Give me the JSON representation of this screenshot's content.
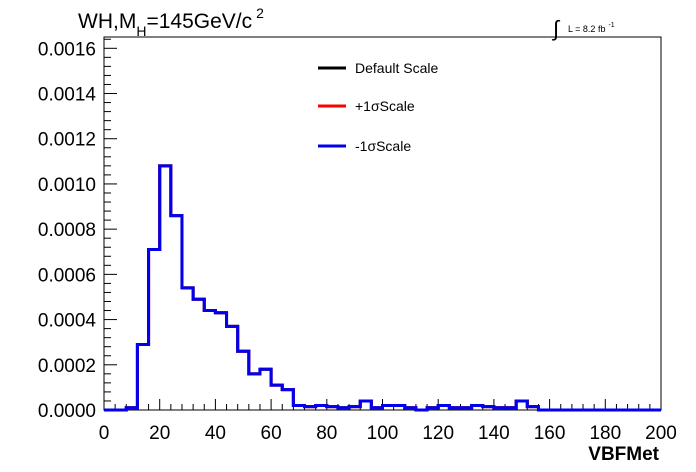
{
  "chart_data": {
    "type": "line",
    "title": {
      "prefix": "WH,M",
      "subscript": "H",
      "middle": "=145GeV/c",
      "superscript": "2"
    },
    "luminosity": {
      "symbol": "∫",
      "text": "L = 8.2 fb",
      "superscript": "-1"
    },
    "xlabel": "VBFMet",
    "ylabel": "",
    "xlim": [
      0,
      200
    ],
    "ylim": [
      0,
      0.00165
    ],
    "x_ticks": [
      "0",
      "20",
      "40",
      "60",
      "80",
      "100",
      "120",
      "140",
      "160",
      "180",
      "200"
    ],
    "y_ticks": [
      "0.0000",
      "0.0002",
      "0.0004",
      "0.0006",
      "0.0008",
      "0.0010",
      "0.0012",
      "0.0014",
      "0.0016"
    ],
    "grid": false,
    "legend_position": "top-right",
    "bin_width": 4,
    "bin_edges_start": 0,
    "series": [
      {
        "name": "Default Scale",
        "color": "#000000",
        "values": [
          0,
          0,
          1e-05,
          0.00029,
          0.00071,
          0.00108,
          0.00086,
          0.00054,
          0.00049,
          0.00044,
          0.00043,
          0.00037,
          0.00026,
          0.00016,
          0.00018,
          0.00011,
          9e-05,
          2e-05,
          1.5e-05,
          2e-05,
          1.5e-05,
          1e-05,
          1.5e-05,
          4e-05,
          1e-05,
          2e-05,
          2e-05,
          1e-05,
          0,
          1e-05,
          2e-05,
          1e-05,
          1e-05,
          2e-05,
          1.5e-05,
          1e-05,
          1e-05,
          4e-05,
          1.5e-05,
          0,
          0,
          0,
          0,
          0,
          0,
          0,
          0,
          0,
          0,
          0
        ]
      },
      {
        "name": "+1σScale",
        "color": "#ff0000",
        "values": [
          0,
          0,
          1e-05,
          0.00029,
          0.00071,
          0.00108,
          0.00086,
          0.00054,
          0.00049,
          0.00044,
          0.00043,
          0.00037,
          0.00026,
          0.00016,
          0.00018,
          0.00011,
          9e-05,
          2e-05,
          1.5e-05,
          2e-05,
          1.5e-05,
          1e-05,
          1.5e-05,
          4e-05,
          1e-05,
          2e-05,
          2e-05,
          1e-05,
          0,
          1e-05,
          2e-05,
          1e-05,
          1e-05,
          2e-05,
          1.5e-05,
          1e-05,
          1e-05,
          4e-05,
          1.5e-05,
          0,
          0,
          0,
          0,
          0,
          0,
          0,
          0,
          0,
          0,
          0
        ]
      },
      {
        "name": "-1σScale",
        "color": "#0000ee",
        "values": [
          0,
          0,
          1e-05,
          0.00029,
          0.00071,
          0.00108,
          0.00086,
          0.00054,
          0.00049,
          0.00044,
          0.00043,
          0.00037,
          0.00026,
          0.00016,
          0.00018,
          0.00011,
          9e-05,
          2e-05,
          1.5e-05,
          2e-05,
          1.5e-05,
          1e-05,
          1.5e-05,
          4e-05,
          1e-05,
          2e-05,
          2e-05,
          1e-05,
          0,
          1e-05,
          2e-05,
          1e-05,
          1e-05,
          2e-05,
          1.5e-05,
          1e-05,
          1e-05,
          4e-05,
          1.5e-05,
          0,
          0,
          0,
          0,
          0,
          0,
          0,
          0,
          0,
          0,
          0
        ]
      }
    ]
  }
}
